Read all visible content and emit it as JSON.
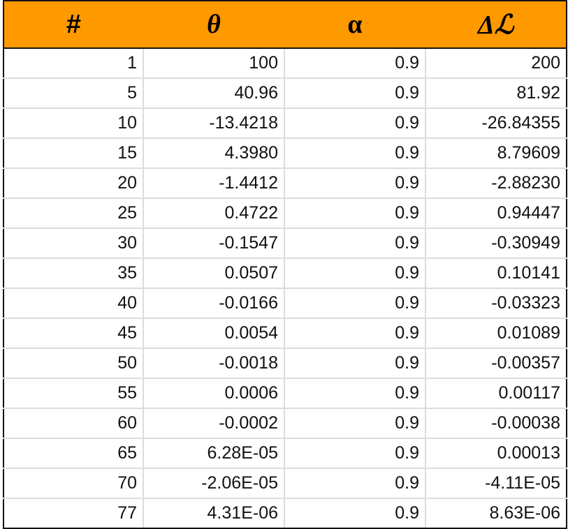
{
  "table": {
    "headers": [
      "#",
      "θ",
      "α",
      "Δℒ"
    ],
    "header_color": "#ff9900",
    "rows": [
      [
        "1",
        "100",
        "0.9",
        "200"
      ],
      [
        "5",
        "40.96",
        "0.9",
        "81.92"
      ],
      [
        "10",
        "-13.4218",
        "0.9",
        "-26.84355"
      ],
      [
        "15",
        "4.3980",
        "0.9",
        "8.79609"
      ],
      [
        "20",
        "-1.4412",
        "0.9",
        "-2.88230"
      ],
      [
        "25",
        "0.4722",
        "0.9",
        "0.94447"
      ],
      [
        "30",
        "-0.1547",
        "0.9",
        "-0.30949"
      ],
      [
        "35",
        "0.0507",
        "0.9",
        "0.10141"
      ],
      [
        "40",
        "-0.0166",
        "0.9",
        "-0.03323"
      ],
      [
        "45",
        "0.0054",
        "0.9",
        "0.01089"
      ],
      [
        "50",
        "-0.0018",
        "0.9",
        "-0.00357"
      ],
      [
        "55",
        "0.0006",
        "0.9",
        "0.00117"
      ],
      [
        "60",
        "-0.0002",
        "0.9",
        "-0.00038"
      ],
      [
        "65",
        "6.28E-05",
        "0.9",
        "0.00013"
      ],
      [
        "70",
        "-2.06E-05",
        "0.9",
        "-4.11E-05"
      ],
      [
        "77",
        "4.31E-06",
        "0.9",
        "8.63E-06"
      ]
    ]
  }
}
